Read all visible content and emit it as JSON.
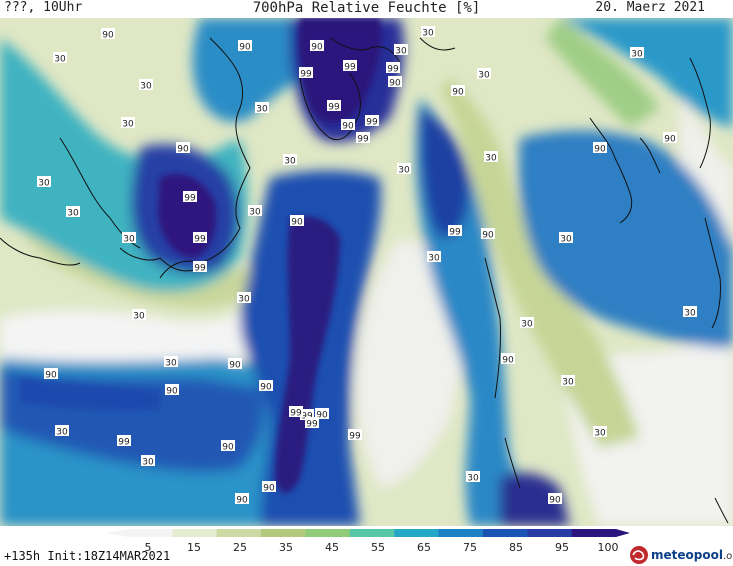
{
  "header": {
    "left": "???, 10Uhr",
    "title": "700hPa Relative Feuchte [%]",
    "date": "20. Maerz 2021"
  },
  "footer": {
    "run_info": "+135h Init:18Z14MAR2021",
    "logo_text": "meteopool",
    "logo_suffix": ".org"
  },
  "colorbar": {
    "labels": [
      "5",
      "15",
      "25",
      "35",
      "45",
      "55",
      "65",
      "75",
      "85",
      "95",
      "100"
    ],
    "colors": [
      "#f4f4f4",
      "#e6ecd0",
      "#cdd9a2",
      "#b3c97b",
      "#8fcb78",
      "#58c7a8",
      "#25a8c8",
      "#1d80c4",
      "#1a55b4",
      "#263ca3",
      "#2c157c"
    ]
  },
  "map_labels": [
    {
      "text": "90"
    },
    {
      "text": "90"
    },
    {
      "text": "90"
    },
    {
      "text": "99"
    },
    {
      "text": "99"
    },
    {
      "text": "99"
    },
    {
      "text": "90"
    },
    {
      "text": "99"
    },
    {
      "text": "90"
    },
    {
      "text": "99"
    },
    {
      "text": "99"
    },
    {
      "text": "90"
    },
    {
      "text": "90"
    },
    {
      "text": "99"
    },
    {
      "text": "90"
    },
    {
      "text": "99"
    },
    {
      "text": "99"
    },
    {
      "text": "90"
    },
    {
      "text": "99"
    },
    {
      "text": "90"
    },
    {
      "text": "90"
    },
    {
      "text": "90"
    },
    {
      "text": "90"
    },
    {
      "text": "99"
    },
    {
      "text": "90"
    },
    {
      "text": "99"
    },
    {
      "text": "99"
    },
    {
      "text": "99"
    },
    {
      "text": "99"
    },
    {
      "text": "90"
    },
    {
      "text": "90"
    },
    {
      "text": "90"
    },
    {
      "text": "90"
    },
    {
      "text": "90"
    },
    {
      "text": "90"
    },
    {
      "text": "90"
    },
    {
      "text": "30"
    },
    {
      "text": "30"
    },
    {
      "text": "30"
    },
    {
      "text": "30"
    },
    {
      "text": "30"
    },
    {
      "text": "30"
    },
    {
      "text": "30"
    },
    {
      "text": "30"
    },
    {
      "text": "30"
    },
    {
      "text": "30"
    },
    {
      "text": "30"
    },
    {
      "text": "30"
    },
    {
      "text": "30"
    },
    {
      "text": "30"
    },
    {
      "text": "30"
    },
    {
      "text": "30"
    },
    {
      "text": "30"
    },
    {
      "text": "30"
    },
    {
      "text": "30"
    },
    {
      "text": "30"
    },
    {
      "text": "30"
    },
    {
      "text": "30"
    },
    {
      "text": "30"
    },
    {
      "text": "30"
    },
    {
      "text": "30"
    },
    {
      "text": "30"
    },
    {
      "text": "30"
    }
  ]
}
